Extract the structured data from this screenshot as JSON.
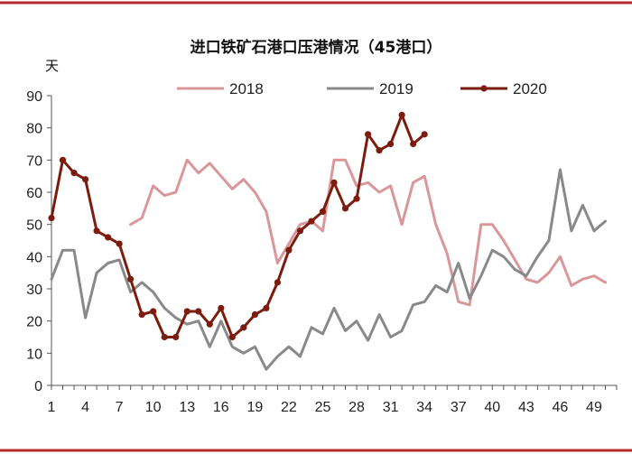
{
  "chart_data": {
    "type": "line",
    "title": "进口铁矿石港口压港情况（45港口）",
    "ylabel": "天",
    "xlabel": "",
    "xlim": [
      1,
      51
    ],
    "ylim": [
      0,
      90
    ],
    "yticks": [
      0,
      10,
      20,
      30,
      40,
      50,
      60,
      70,
      80,
      90
    ],
    "xticks": [
      1,
      4,
      7,
      10,
      13,
      16,
      19,
      22,
      25,
      28,
      31,
      34,
      37,
      40,
      43,
      46,
      49
    ],
    "legend_position": "top",
    "series": [
      {
        "name": "2018",
        "color": "#d9979a",
        "markers": false,
        "points": [
          [
            8,
            50
          ],
          [
            9,
            52
          ],
          [
            10,
            62
          ],
          [
            11,
            59
          ],
          [
            12,
            60
          ],
          [
            13,
            70
          ],
          [
            14,
            66
          ],
          [
            15,
            69
          ],
          [
            16,
            65
          ],
          [
            17,
            61
          ],
          [
            18,
            64
          ],
          [
            19,
            60
          ],
          [
            20,
            54
          ],
          [
            21,
            38
          ],
          [
            22,
            44
          ],
          [
            23,
            50
          ],
          [
            24,
            51
          ],
          [
            25,
            48
          ],
          [
            26,
            70
          ],
          [
            27,
            70
          ],
          [
            28,
            62
          ],
          [
            29,
            63
          ],
          [
            30,
            60
          ],
          [
            31,
            62
          ],
          [
            32,
            50
          ],
          [
            33,
            63
          ],
          [
            34,
            65
          ],
          [
            35,
            50
          ],
          [
            36,
            41
          ],
          [
            37,
            26
          ],
          [
            38,
            25
          ],
          [
            39,
            50
          ],
          [
            40,
            50
          ],
          [
            41,
            45
          ],
          [
            42,
            39
          ],
          [
            43,
            33
          ],
          [
            44,
            32
          ],
          [
            45,
            35
          ],
          [
            46,
            40
          ],
          [
            47,
            31
          ],
          [
            48,
            33
          ],
          [
            49,
            34
          ],
          [
            50,
            32
          ]
        ]
      },
      {
        "name": "2019",
        "color": "#898989",
        "markers": false,
        "points": [
          [
            1,
            33
          ],
          [
            2,
            42
          ],
          [
            3,
            42
          ],
          [
            4,
            21
          ],
          [
            5,
            35
          ],
          [
            6,
            38
          ],
          [
            7,
            39
          ],
          [
            8,
            29
          ],
          [
            9,
            32
          ],
          [
            10,
            29
          ],
          [
            11,
            24
          ],
          [
            12,
            21
          ],
          [
            13,
            19
          ],
          [
            14,
            20
          ],
          [
            15,
            12
          ],
          [
            16,
            20
          ],
          [
            17,
            12
          ],
          [
            18,
            10
          ],
          [
            19,
            12
          ],
          [
            20,
            5
          ],
          [
            21,
            9
          ],
          [
            22,
            12
          ],
          [
            23,
            9
          ],
          [
            24,
            18
          ],
          [
            25,
            16
          ],
          [
            26,
            24
          ],
          [
            27,
            17
          ],
          [
            28,
            20
          ],
          [
            29,
            14
          ],
          [
            30,
            22
          ],
          [
            31,
            15
          ],
          [
            32,
            17
          ],
          [
            33,
            25
          ],
          [
            34,
            26
          ],
          [
            35,
            31
          ],
          [
            36,
            29
          ],
          [
            37,
            38
          ],
          [
            38,
            27
          ],
          [
            39,
            34
          ],
          [
            40,
            42
          ],
          [
            41,
            40
          ],
          [
            42,
            36
          ],
          [
            43,
            34
          ],
          [
            44,
            40
          ],
          [
            45,
            45
          ],
          [
            46,
            67
          ],
          [
            47,
            48
          ],
          [
            48,
            56
          ],
          [
            49,
            48
          ],
          [
            50,
            51
          ]
        ]
      },
      {
        "name": "2020",
        "color": "#7b1c0f",
        "markers": true,
        "points": [
          [
            1,
            52
          ],
          [
            2,
            70
          ],
          [
            3,
            66
          ],
          [
            4,
            64
          ],
          [
            5,
            48
          ],
          [
            6,
            46
          ],
          [
            7,
            44
          ],
          [
            8,
            33
          ],
          [
            9,
            22
          ],
          [
            10,
            23
          ],
          [
            11,
            15
          ],
          [
            12,
            15
          ],
          [
            13,
            23
          ],
          [
            14,
            23
          ],
          [
            15,
            19
          ],
          [
            16,
            24
          ],
          [
            17,
            15
          ],
          [
            18,
            18
          ],
          [
            19,
            22
          ],
          [
            20,
            24
          ],
          [
            21,
            32
          ],
          [
            22,
            42
          ],
          [
            23,
            48
          ],
          [
            24,
            51
          ],
          [
            25,
            54
          ],
          [
            26,
            63
          ],
          [
            27,
            55
          ],
          [
            28,
            58
          ],
          [
            29,
            78
          ],
          [
            30,
            73
          ],
          [
            31,
            75
          ],
          [
            32,
            84
          ],
          [
            33,
            75
          ],
          [
            34,
            78
          ]
        ]
      }
    ]
  }
}
